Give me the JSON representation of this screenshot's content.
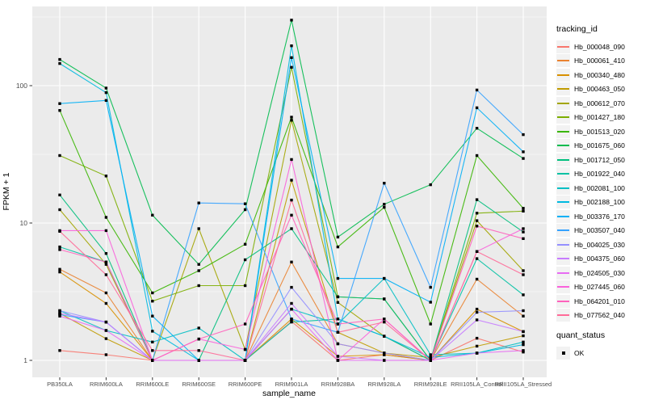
{
  "chart_data": {
    "type": "line",
    "title": "",
    "xlabel": "sample_name",
    "ylabel": "FPKM + 1",
    "log_y": true,
    "y_ticks": [
      1,
      10,
      100
    ],
    "ylim": [
      0.75,
      355
    ],
    "grid": true,
    "legend_position": "right",
    "panel_bg": "#EBEBEB",
    "grid_color": "#FFFFFF",
    "point_color": "#000000",
    "tick_label_color": "#4D4D4D",
    "categories": [
      "PB350LA",
      "RRIM600LA",
      "RRIM600LE",
      "RRIM600SE",
      "RRIM600PE",
      "RRIM901LA",
      "RRIM928BA",
      "RRIM928LA",
      "RRIM928LE",
      "RRII105LA_Control",
      "RRII105LA_Stressed"
    ],
    "legends": {
      "tracking": {
        "title": "tracking_id"
      },
      "quant": {
        "title": "quant_status",
        "items": [
          {
            "label": "OK",
            "marker": "black-square"
          }
        ]
      }
    },
    "series": [
      {
        "name": "Hb_000048_090",
        "color": "#F8766D",
        "values": [
          1.18,
          1.1,
          1.0,
          1.0,
          1.0,
          1.92,
          1.0,
          1.1,
          1.0,
          1.45,
          1.15
        ]
      },
      {
        "name": "Hb_000061_410",
        "color": "#EA8331",
        "values": [
          4.6,
          3.1,
          1.0,
          1.0,
          1.0,
          5.2,
          1.32,
          1.13,
          1.0,
          3.9,
          2.1
        ]
      },
      {
        "name": "Hb_000340_480",
        "color": "#D89000",
        "values": [
          4.4,
          2.6,
          1.0,
          1.0,
          1.0,
          2.0,
          1.07,
          1.1,
          1.0,
          2.36,
          1.62
        ]
      },
      {
        "name": "Hb_000463_050",
        "color": "#C09B00",
        "values": [
          2.2,
          1.44,
          1.0,
          1.0,
          1.0,
          20.5,
          1.6,
          1.13,
          1.05,
          1.27,
          1.51
        ]
      },
      {
        "name": "Hb_000612_070",
        "color": "#A3A500",
        "values": [
          12.5,
          5.0,
          1.0,
          9.1,
          1.2,
          56.0,
          2.64,
          1.5,
          1.0,
          10.4,
          4.5
        ]
      },
      {
        "name": "Hb_001427_180",
        "color": "#7CAE00",
        "values": [
          31.0,
          22.0,
          2.7,
          3.5,
          3.5,
          136,
          2.9,
          2.8,
          1.0,
          11.8,
          12.2
        ]
      },
      {
        "name": "Hb_001513_020",
        "color": "#39B600",
        "values": [
          66.0,
          11.0,
          3.1,
          4.5,
          7.0,
          59.0,
          6.7,
          13.0,
          1.84,
          31.0,
          12.8
        ]
      },
      {
        "name": "Hb_001675_060",
        "color": "#00BB4E",
        "values": [
          155,
          96.0,
          11.4,
          5.0,
          12.5,
          300,
          7.9,
          13.7,
          19.0,
          49.0,
          29.5
        ]
      },
      {
        "name": "Hb_001712_050",
        "color": "#00BF7D",
        "values": [
          16.0,
          6.0,
          1.0,
          1.0,
          5.4,
          9.1,
          2.9,
          2.8,
          1.0,
          14.8,
          8.6
        ]
      },
      {
        "name": "Hb_001922_040",
        "color": "#00C1A3",
        "values": [
          6.7,
          5.2,
          1.0,
          1.0,
          1.0,
          1.9,
          2.0,
          1.5,
          1.0,
          5.5,
          3.0
        ]
      },
      {
        "name": "Hb_002081_100",
        "color": "#00BFC4",
        "values": [
          2.3,
          1.65,
          1.36,
          1.72,
          1.0,
          2.36,
          1.84,
          3.95,
          1.1,
          1.13,
          1.36
        ]
      },
      {
        "name": "Hb_002188_100",
        "color": "#00BAE0",
        "values": [
          145,
          89.0,
          1.63,
          1.0,
          1.0,
          195,
          2.0,
          1.5,
          1.05,
          1.13,
          1.3
        ]
      },
      {
        "name": "Hb_003376_170",
        "color": "#00B0F6",
        "values": [
          74.0,
          78.0,
          2.1,
          1.0,
          1.0,
          160,
          3.95,
          3.95,
          2.65,
          69.0,
          33.0
        ]
      },
      {
        "name": "Hb_003507_040",
        "color": "#35A2FF",
        "values": [
          2.15,
          1.9,
          1.0,
          14.0,
          13.8,
          2.0,
          1.6,
          19.5,
          3.4,
          93.0,
          44.0
        ]
      },
      {
        "name": "Hb_004025_030",
        "color": "#9590FF",
        "values": [
          2.3,
          1.9,
          1.0,
          1.0,
          1.0,
          3.4,
          1.32,
          1.13,
          1.0,
          2.24,
          2.3
        ]
      },
      {
        "name": "Hb_004375_060",
        "color": "#C77CFF",
        "values": [
          2.2,
          1.9,
          1.0,
          1.0,
          1.0,
          2.6,
          1.07,
          1.0,
          1.0,
          1.97,
          1.62
        ]
      },
      {
        "name": "Hb_024505_030",
        "color": "#E76BF3",
        "values": [
          2.1,
          1.65,
          1.0,
          1.0,
          1.0,
          2.36,
          1.0,
          1.0,
          1.0,
          1.13,
          1.18
        ]
      },
      {
        "name": "Hb_027445_060",
        "color": "#FA62DB",
        "values": [
          8.8,
          8.8,
          1.0,
          1.43,
          1.2,
          29.0,
          1.0,
          2.0,
          1.0,
          6.2,
          9.1
        ]
      },
      {
        "name": "Hb_064201_010",
        "color": "#FF62BC",
        "values": [
          6.4,
          5.2,
          1.0,
          1.43,
          1.84,
          11.4,
          1.84,
          2.0,
          1.0,
          9.5,
          7.7
        ]
      },
      {
        "name": "Hb_077562_040",
        "color": "#FF6A98",
        "values": [
          8.7,
          4.2,
          1.18,
          1.18,
          1.0,
          14.7,
          1.6,
          1.9,
          1.0,
          6.2,
          4.2
        ]
      }
    ]
  }
}
